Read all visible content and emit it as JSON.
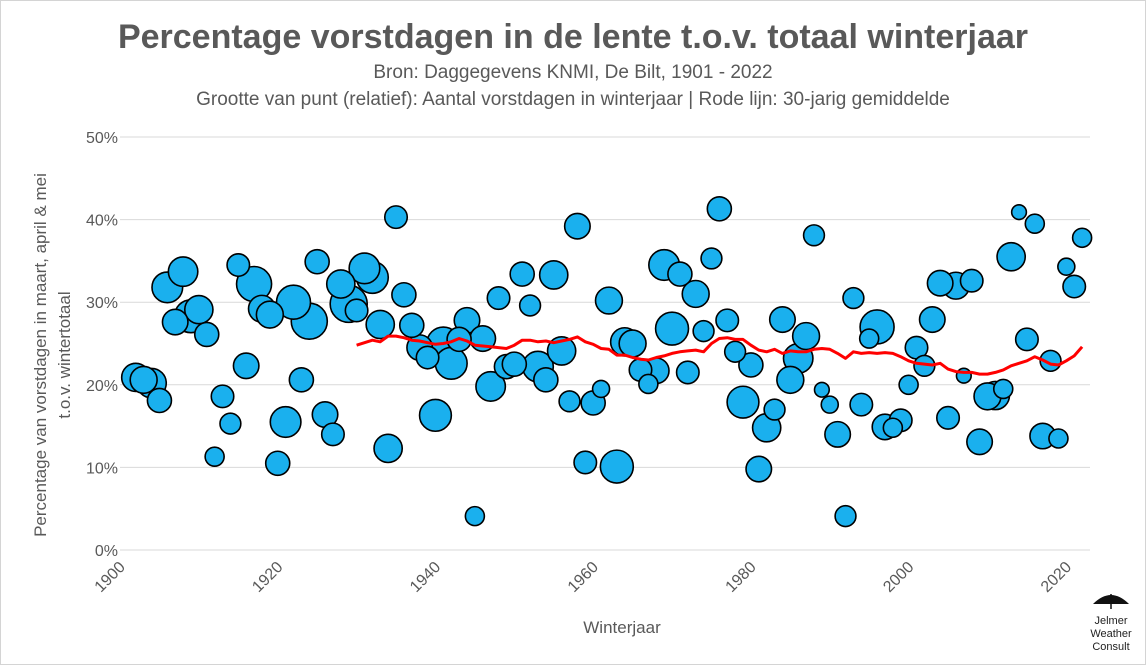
{
  "chart_data": {
    "type": "scatter",
    "title": "Percentage vorstdagen in de lente t.o.v. totaal winterjaar",
    "subtitle": "Bron: Daggegevens KNMI, De Bilt, 1901 - 2022",
    "subtitle2": "Grootte van punt (relatief): Aantal vorstdagen in winterjaar | Rode lijn: 30-jarig gemiddelde",
    "xlabel": "Winterjaar",
    "ylabel_line1": "Percentage van vorstdagen in maart, april & mei",
    "ylabel_line2": "t.o.v. wintertotaal",
    "xlim": [
      1900,
      2023
    ],
    "ylim": [
      0,
      50
    ],
    "x_ticks": [
      "1900",
      "1920",
      "1940",
      "1960",
      "1980",
      "2000",
      "2020"
    ],
    "y_ticks": [
      "0%",
      "10%",
      "20%",
      "30%",
      "40%",
      "50%"
    ],
    "grid": "horizontal",
    "point_color": "#1ab0ee",
    "line_color": "#ff0000",
    "points": [
      {
        "x": 1902,
        "y": 20.9,
        "s": 55
      },
      {
        "x": 1903,
        "y": 20.6,
        "s": 50
      },
      {
        "x": 1904,
        "y": 20.2,
        "s": 60
      },
      {
        "x": 1905,
        "y": 18.1,
        "s": 40
      },
      {
        "x": 1906,
        "y": 31.8,
        "s": 65
      },
      {
        "x": 1907,
        "y": 27.6,
        "s": 45
      },
      {
        "x": 1908,
        "y": 33.7,
        "s": 60
      },
      {
        "x": 1909,
        "y": 28.3,
        "s": 75
      },
      {
        "x": 1910,
        "y": 29.1,
        "s": 55
      },
      {
        "x": 1911,
        "y": 26.1,
        "s": 40
      },
      {
        "x": 1912,
        "y": 11.3,
        "s": 25
      },
      {
        "x": 1913,
        "y": 18.6,
        "s": 35
      },
      {
        "x": 1914,
        "y": 15.3,
        "s": 30
      },
      {
        "x": 1915,
        "y": 34.5,
        "s": 35
      },
      {
        "x": 1916,
        "y": 22.3,
        "s": 45
      },
      {
        "x": 1917,
        "y": 32.2,
        "s": 85
      },
      {
        "x": 1918,
        "y": 29.2,
        "s": 50
      },
      {
        "x": 1919,
        "y": 28.5,
        "s": 50
      },
      {
        "x": 1920,
        "y": 10.5,
        "s": 40
      },
      {
        "x": 1921,
        "y": 15.5,
        "s": 65
      },
      {
        "x": 1922,
        "y": 30.0,
        "s": 80
      },
      {
        "x": 1923,
        "y": 20.6,
        "s": 40
      },
      {
        "x": 1924,
        "y": 27.7,
        "s": 90
      },
      {
        "x": 1925,
        "y": 34.9,
        "s": 40
      },
      {
        "x": 1926,
        "y": 16.4,
        "s": 45
      },
      {
        "x": 1927,
        "y": 14.0,
        "s": 35
      },
      {
        "x": 1928,
        "y": 32.2,
        "s": 55
      },
      {
        "x": 1929,
        "y": 29.8,
        "s": 95
      },
      {
        "x": 1930,
        "y": 29.0,
        "s": 35
      },
      {
        "x": 1931,
        "y": 34.1,
        "s": 65
      },
      {
        "x": 1932,
        "y": 33.0,
        "s": 70
      },
      {
        "x": 1933,
        "y": 27.3,
        "s": 55
      },
      {
        "x": 1934,
        "y": 12.3,
        "s": 55
      },
      {
        "x": 1935,
        "y": 40.3,
        "s": 35
      },
      {
        "x": 1936,
        "y": 30.9,
        "s": 40
      },
      {
        "x": 1937,
        "y": 27.2,
        "s": 40
      },
      {
        "x": 1938,
        "y": 24.5,
        "s": 45
      },
      {
        "x": 1939,
        "y": 23.3,
        "s": 35
      },
      {
        "x": 1940,
        "y": 16.3,
        "s": 70
      },
      {
        "x": 1941,
        "y": 25.0,
        "s": 75
      },
      {
        "x": 1942,
        "y": 22.6,
        "s": 70
      },
      {
        "x": 1943,
        "y": 25.5,
        "s": 40
      },
      {
        "x": 1944,
        "y": 27.8,
        "s": 45
      },
      {
        "x": 1945,
        "y": 4.1,
        "s": 25
      },
      {
        "x": 1946,
        "y": 25.6,
        "s": 45
      },
      {
        "x": 1947,
        "y": 19.8,
        "s": 60
      },
      {
        "x": 1948,
        "y": 30.5,
        "s": 35
      },
      {
        "x": 1949,
        "y": 22.2,
        "s": 40
      },
      {
        "x": 1950,
        "y": 22.5,
        "s": 40
      },
      {
        "x": 1951,
        "y": 33.4,
        "s": 40
      },
      {
        "x": 1952,
        "y": 29.6,
        "s": 30
      },
      {
        "x": 1953,
        "y": 22.2,
        "s": 65
      },
      {
        "x": 1954,
        "y": 20.6,
        "s": 40
      },
      {
        "x": 1955,
        "y": 33.3,
        "s": 55
      },
      {
        "x": 1956,
        "y": 24.1,
        "s": 55
      },
      {
        "x": 1957,
        "y": 18.0,
        "s": 30
      },
      {
        "x": 1958,
        "y": 39.2,
        "s": 45
      },
      {
        "x": 1959,
        "y": 10.6,
        "s": 35
      },
      {
        "x": 1960,
        "y": 17.8,
        "s": 40
      },
      {
        "x": 1961,
        "y": 19.5,
        "s": 20
      },
      {
        "x": 1962,
        "y": 30.2,
        "s": 50
      },
      {
        "x": 1963,
        "y": 10.1,
        "s": 75
      },
      {
        "x": 1964,
        "y": 25.2,
        "s": 55
      },
      {
        "x": 1965,
        "y": 25.0,
        "s": 50
      },
      {
        "x": 1966,
        "y": 21.8,
        "s": 35
      },
      {
        "x": 1967,
        "y": 20.1,
        "s": 25
      },
      {
        "x": 1968,
        "y": 21.7,
        "s": 45
      },
      {
        "x": 1969,
        "y": 34.5,
        "s": 65
      },
      {
        "x": 1970,
        "y": 26.8,
        "s": 75
      },
      {
        "x": 1971,
        "y": 33.4,
        "s": 40
      },
      {
        "x": 1972,
        "y": 21.5,
        "s": 35
      },
      {
        "x": 1973,
        "y": 31.0,
        "s": 50
      },
      {
        "x": 1974,
        "y": 26.5,
        "s": 30
      },
      {
        "x": 1975,
        "y": 35.3,
        "s": 30
      },
      {
        "x": 1976,
        "y": 41.3,
        "s": 40
      },
      {
        "x": 1977,
        "y": 27.8,
        "s": 35
      },
      {
        "x": 1978,
        "y": 24.0,
        "s": 30
      },
      {
        "x": 1979,
        "y": 17.9,
        "s": 70
      },
      {
        "x": 1980,
        "y": 22.4,
        "s": 40
      },
      {
        "x": 1981,
        "y": 9.8,
        "s": 45
      },
      {
        "x": 1982,
        "y": 14.8,
        "s": 55
      },
      {
        "x": 1983,
        "y": 17.0,
        "s": 30
      },
      {
        "x": 1984,
        "y": 27.9,
        "s": 45
      },
      {
        "x": 1985,
        "y": 20.6,
        "s": 50
      },
      {
        "x": 1986,
        "y": 23.2,
        "s": 60
      },
      {
        "x": 1987,
        "y": 25.9,
        "s": 50
      },
      {
        "x": 1988,
        "y": 38.1,
        "s": 30
      },
      {
        "x": 1989,
        "y": 19.4,
        "s": 15
      },
      {
        "x": 1990,
        "y": 17.6,
        "s": 20
      },
      {
        "x": 1991,
        "y": 14.0,
        "s": 45
      },
      {
        "x": 1992,
        "y": 4.1,
        "s": 30
      },
      {
        "x": 1993,
        "y": 30.5,
        "s": 30
      },
      {
        "x": 1994,
        "y": 17.6,
        "s": 35
      },
      {
        "x": 1995,
        "y": 25.6,
        "s": 25
      },
      {
        "x": 1996,
        "y": 27.0,
        "s": 80
      },
      {
        "x": 1997,
        "y": 14.9,
        "s": 45
      },
      {
        "x": 1998,
        "y": 14.8,
        "s": 25
      },
      {
        "x": 1999,
        "y": 15.7,
        "s": 35
      },
      {
        "x": 2000,
        "y": 20.0,
        "s": 25
      },
      {
        "x": 2001,
        "y": 24.5,
        "s": 35
      },
      {
        "x": 2002,
        "y": 22.3,
        "s": 30
      },
      {
        "x": 2003,
        "y": 27.9,
        "s": 45
      },
      {
        "x": 2004,
        "y": 32.3,
        "s": 45
      },
      {
        "x": 2005,
        "y": 16.0,
        "s": 35
      },
      {
        "x": 2006,
        "y": 32.0,
        "s": 50
      },
      {
        "x": 2007,
        "y": 21.1,
        "s": 15
      },
      {
        "x": 2008,
        "y": 32.6,
        "s": 35
      },
      {
        "x": 2009,
        "y": 13.1,
        "s": 45
      },
      {
        "x": 2010,
        "y": 18.6,
        "s": 50
      },
      {
        "x": 2011,
        "y": 18.7,
        "s": 55
      },
      {
        "x": 2012,
        "y": 19.5,
        "s": 25
      },
      {
        "x": 2013,
        "y": 35.5,
        "s": 55
      },
      {
        "x": 2014,
        "y": 40.9,
        "s": 15
      },
      {
        "x": 2015,
        "y": 25.5,
        "s": 35
      },
      {
        "x": 2016,
        "y": 39.5,
        "s": 25
      },
      {
        "x": 2017,
        "y": 13.8,
        "s": 45
      },
      {
        "x": 2018,
        "y": 22.9,
        "s": 30
      },
      {
        "x": 2019,
        "y": 13.5,
        "s": 25
      },
      {
        "x": 2020,
        "y": 34.3,
        "s": 20
      },
      {
        "x": 2021,
        "y": 31.9,
        "s": 35
      },
      {
        "x": 2022,
        "y": 37.8,
        "s": 25
      }
    ],
    "moving_average": {
      "x": [
        1930,
        1931,
        1932,
        1933,
        1934,
        1935,
        1936,
        1937,
        1938,
        1939,
        1940,
        1941,
        1942,
        1943,
        1944,
        1945,
        1946,
        1947,
        1948,
        1949,
        1950,
        1951,
        1952,
        1953,
        1954,
        1955,
        1956,
        1957,
        1958,
        1959,
        1960,
        1961,
        1962,
        1963,
        1964,
        1965,
        1966,
        1967,
        1968,
        1969,
        1970,
        1971,
        1972,
        1973,
        1974,
        1975,
        1976,
        1977,
        1978,
        1979,
        1980,
        1981,
        1982,
        1983,
        1984,
        1985,
        1986,
        1987,
        1988,
        1989,
        1990,
        1991,
        1992,
        1993,
        1994,
        1995,
        1996,
        1997,
        1998,
        1999,
        2000,
        2001,
        2002,
        2003,
        2004,
        2005,
        2006,
        2007,
        2008,
        2009,
        2010,
        2011,
        2012,
        2013,
        2014,
        2015,
        2016,
        2017,
        2018,
        2019,
        2020,
        2021,
        2022
      ],
      "y": [
        24.8,
        25.1,
        25.4,
        25.2,
        25.9,
        25.9,
        25.7,
        25.4,
        25.3,
        25.1,
        24.9,
        25.0,
        25.2,
        25.6,
        25.3,
        24.8,
        24.7,
        24.6,
        24.5,
        24.4,
        24.8,
        25.4,
        25.4,
        25.2,
        25.3,
        25.1,
        25.3,
        25.5,
        25.8,
        25.2,
        24.9,
        24.4,
        24.3,
        23.6,
        23.6,
        23.3,
        23.1,
        23.0,
        23.3,
        23.5,
        23.8,
        24.0,
        24.1,
        24.2,
        24.0,
        25.0,
        25.6,
        25.7,
        25.5,
        25.5,
        24.8,
        24.2,
        24.0,
        24.3,
        23.8,
        24.1,
        24.0,
        24.0,
        24.3,
        24.4,
        24.3,
        23.8,
        23.2,
        24.0,
        23.8,
        23.9,
        23.8,
        23.9,
        23.8,
        23.4,
        22.9,
        22.6,
        22.5,
        22.4,
        22.6,
        21.9,
        21.6,
        21.5,
        21.5,
        21.3,
        21.3,
        21.5,
        21.8,
        22.3,
        22.6,
        22.9,
        23.4,
        23.0,
        22.5,
        22.4,
        22.9,
        23.5,
        24.6
      ]
    }
  },
  "logo": {
    "line1": "Jelmer",
    "line2": "Weather",
    "line3": "Consult"
  }
}
